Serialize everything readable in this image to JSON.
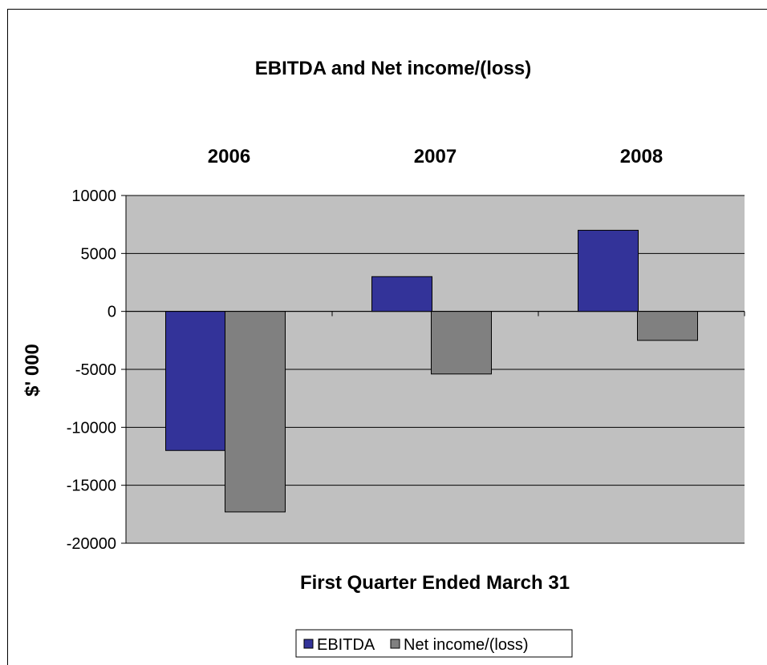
{
  "chart_data": {
    "type": "bar",
    "title": "EBITDA and Net income/(loss)",
    "categories": [
      "2006",
      "2007",
      "2008"
    ],
    "series": [
      {
        "name": "EBITDA",
        "values": [
          -12000,
          3000,
          7000
        ],
        "color": "#333399"
      },
      {
        "name": "Net income/(loss)",
        "values": [
          -17300,
          -5400,
          -2500
        ],
        "color": "#808080"
      }
    ],
    "xlabel": "First Quarter Ended March 31",
    "ylabel": "$' 000",
    "ylim": [
      -20000,
      10000
    ],
    "yticks": [
      "10000",
      "5000",
      "0",
      "-5000",
      "-10000",
      "-15000",
      "-20000"
    ],
    "grid": true,
    "plot_background": "#c0c0c0",
    "category_labels_position": "top",
    "legend_position": "bottom"
  }
}
